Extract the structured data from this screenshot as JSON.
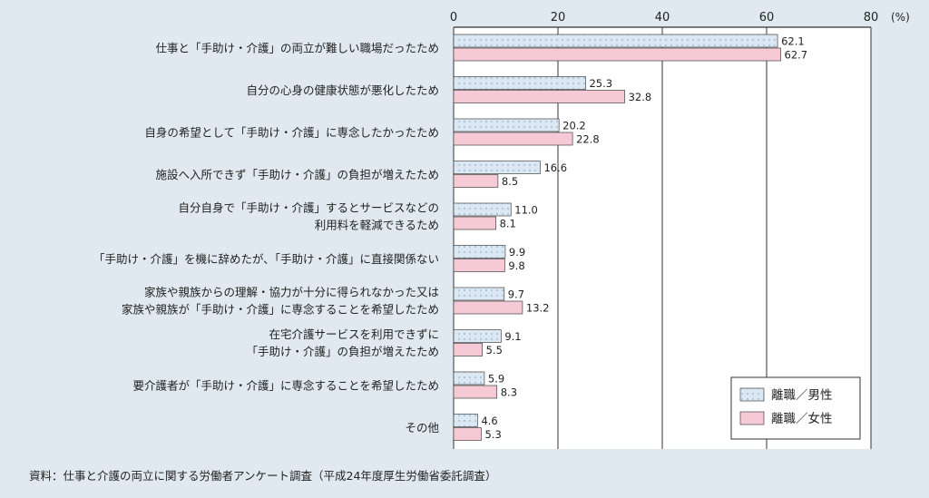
{
  "chart_data": {
    "type": "bar",
    "orientation": "horizontal",
    "categories": [
      "仕事と「手助け・介護」の両立が難しい職場だったため",
      "自分の心身の健康状態が悪化したため",
      "自身の希望として「手助け・介護」に専念したかったため",
      "施設へ入所できず「手助け・介護」の負担が増えたため",
      "自分自身で「手助け・介護」するとサービスなどの\n利用料を軽減できるため",
      "「手助け・介護」を機に辞めたが、「手助け・介護」に直接関係ない",
      "家族や親族からの理解・協力が十分に得られなかった又は\n家族や親族が「手助け・介護」に専念することを希望したため",
      "在宅介護サービスを利用できずに\n「手助け・介護」の負担が増えたため",
      "要介護者が「手助け・介護」に専念することを希望したため",
      "その他"
    ],
    "series": [
      {
        "name": "離職／男性",
        "values": [
          62.1,
          25.3,
          20.2,
          16.6,
          11.0,
          9.9,
          9.7,
          9.1,
          5.9,
          4.6
        ]
      },
      {
        "name": "離職／女性",
        "values": [
          62.7,
          32.8,
          22.8,
          8.5,
          8.1,
          9.8,
          13.2,
          5.5,
          8.3,
          5.3
        ]
      }
    ],
    "xlim": [
      0,
      80
    ],
    "xticks": [
      "0",
      "20",
      "40",
      "60",
      "80"
    ],
    "unit_label": "(%)",
    "grid": true,
    "legend_position": "bottom-right",
    "colors": {
      "male": "#dbe8f4",
      "male_dots": "#8fb0cc",
      "female": "#f6c9d6",
      "edge": "#444444"
    },
    "source_note": "資料：仕事と介護の両立に関する労働者アンケート調査（平成24年度厚生労働省委託調査）"
  }
}
